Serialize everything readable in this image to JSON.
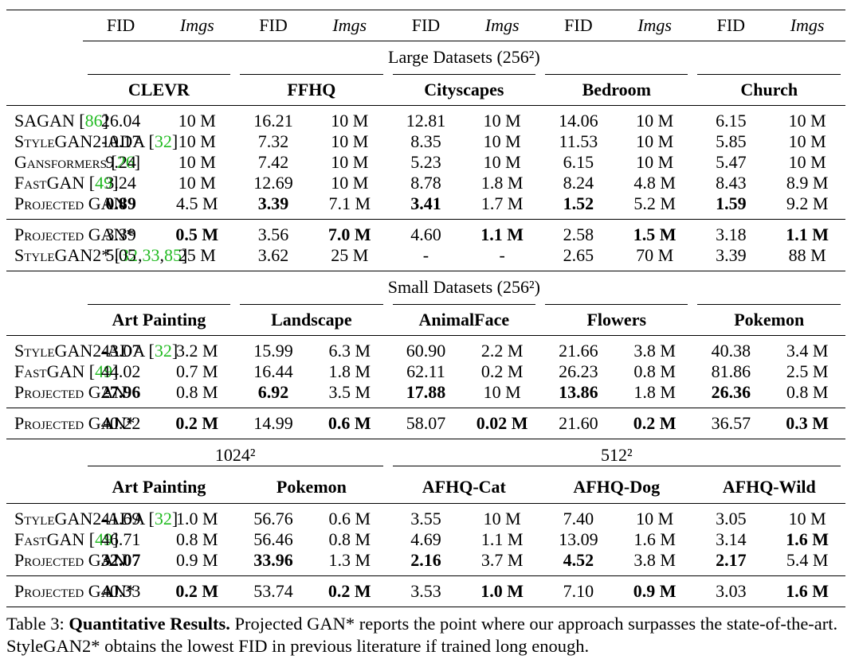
{
  "header": {
    "cols": [
      "FID",
      "Imgs",
      "FID",
      "Imgs",
      "FID",
      "Imgs",
      "FID",
      "Imgs",
      "FID",
      "Imgs"
    ]
  },
  "sections": [
    {
      "title": "Large Datasets (256²)",
      "datasets": [
        "CLEVR",
        "FFHQ",
        "Cityscapes",
        "Bedroom",
        "Church"
      ],
      "groups": [
        [
          {
            "method": "SAGAN",
            "cite": "[86]",
            "cells": [
              "26.04",
              "10 M",
              "16.21",
              "10 M",
              "12.81",
              "10 M",
              "14.06",
              "10 M",
              "6.15",
              "10 M"
            ],
            "bold": []
          },
          {
            "method": "StyleGAN2-ADA",
            "cite": "[32]",
            "cells": [
              "10.17",
              "10 M",
              "7.32",
              "10 M",
              "8.35",
              "10 M",
              "11.53",
              "10 M",
              "5.85",
              "10 M"
            ],
            "bold": []
          },
          {
            "method": "Gansformers",
            "cite": "[26]",
            "cells": [
              "9.24",
              "10 M",
              "7.42",
              "10 M",
              "5.23",
              "10 M",
              "6.15",
              "10 M",
              "5.47",
              "10 M"
            ],
            "bold": []
          },
          {
            "method": "FastGAN",
            "cite": "[49]",
            "cells": [
              "3.24",
              "10 M",
              "12.69",
              "10 M",
              "8.78",
              "1.8 M",
              "8.24",
              "4.8 M",
              "8.43",
              "8.9 M"
            ],
            "bold": []
          },
          {
            "method": "Projected GAN",
            "cells": [
              "0.89",
              "4.5 M",
              "3.39",
              "7.1 M",
              "3.41",
              "1.7 M",
              "1.52",
              "5.2 M",
              "1.59",
              "9.2 M"
            ],
            "bold": [
              0,
              2,
              4,
              6,
              8
            ]
          }
        ],
        [
          {
            "method": "Projected GAN*",
            "cells": [
              "3.39",
              "0.5 M",
              "3.56",
              "7.0 M",
              "4.60",
              "1.1 M",
              "2.58",
              "1.5 M",
              "3.18",
              "1.1 M"
            ],
            "bold": [
              1,
              3,
              5,
              7,
              9
            ]
          },
          {
            "method": "StyleGAN2*",
            "cite": "[32,33,85]",
            "cells": [
              "5.05",
              "25 M",
              "3.62",
              "25 M",
              "-",
              "-",
              "2.65",
              "70 M",
              "3.39",
              "88 M"
            ],
            "bold": []
          }
        ]
      ]
    },
    {
      "title": "Small Datasets (256²)",
      "datasets": [
        "Art Painting",
        "Landscape",
        "AnimalFace",
        "Flowers",
        "Pokemon"
      ],
      "groups": [
        [
          {
            "method": "StyleGAN2-ADA",
            "cite": "[32]",
            "cells": [
              "43.07",
              "3.2 M",
              "15.99",
              "6.3 M",
              "60.90",
              "2.2 M",
              "21.66",
              "3.8 M",
              "40.38",
              "3.4 M"
            ],
            "bold": []
          },
          {
            "method": "FastGAN",
            "cite": "[49]",
            "cells": [
              "44.02",
              "0.7 M",
              "16.44",
              "1.8 M",
              "62.11",
              "0.2 M",
              "26.23",
              "0.8 M",
              "81.86",
              "2.5 M"
            ],
            "bold": []
          },
          {
            "method": "Projected GAN",
            "cells": [
              "27.96",
              "0.8 M",
              "6.92",
              "3.5 M",
              "17.88",
              "10 M",
              "13.86",
              "1.8 M",
              "26.36",
              "0.8 M"
            ],
            "bold": [
              0,
              2,
              4,
              6,
              8
            ]
          }
        ],
        [
          {
            "method": "Projected GAN*",
            "cells": [
              "40.22",
              "0.2 M",
              "14.99",
              "0.6 M",
              "58.07",
              "0.02 M",
              "21.60",
              "0.2 M",
              "36.57",
              "0.3 M"
            ],
            "bold": [
              1,
              3,
              5,
              7,
              9
            ]
          }
        ]
      ]
    },
    {
      "subtitles": [
        {
          "text": "1024²",
          "span": 2
        },
        {
          "text": "512²",
          "span": 3
        }
      ],
      "datasets": [
        "Art Painting",
        "Pokemon",
        "AFHQ-Cat",
        "AFHQ-Dog",
        "AFHQ-Wild"
      ],
      "groups": [
        [
          {
            "method": "StyleGAN2-ADA",
            "cite": "[32]",
            "cells": [
              "41.69",
              "1.0 M",
              "56.76",
              "0.6 M",
              "3.55",
              "10 M",
              "7.40",
              "10 M",
              "3.05",
              "10 M"
            ],
            "bold": []
          },
          {
            "method": "FastGAN",
            "cite": "[49]",
            "cells": [
              "46.71",
              "0.8 M",
              "56.46",
              "0.8 M",
              "4.69",
              "1.1 M",
              "13.09",
              "1.6 M",
              "3.14",
              "1.6 M"
            ],
            "bold": [
              9
            ]
          },
          {
            "method": "Projected GAN",
            "cells": [
              "32.07",
              "0.9 M",
              "33.96",
              "1.3 M",
              "2.16",
              "3.7 M",
              "4.52",
              "3.8 M",
              "2.17",
              "5.4 M"
            ],
            "bold": [
              0,
              2,
              4,
              6,
              8
            ]
          }
        ],
        [
          {
            "method": "Projected GAN*",
            "cells": [
              "40.33",
              "0.2 M",
              "53.74",
              "0.2 M",
              "3.53",
              "1.0 M",
              "7.10",
              "0.9 M",
              "3.03",
              "1.6 M"
            ],
            "bold": [
              1,
              3,
              5,
              7,
              9
            ]
          }
        ]
      ]
    }
  ],
  "caption": {
    "label": "Table 3:",
    "title": "Quantitative Results.",
    "text": "Projected GAN* reports the point where our approach surpasses the state-of-the-art. StyleGAN2* obtains the lowest FID in previous literature if trained long enough."
  }
}
